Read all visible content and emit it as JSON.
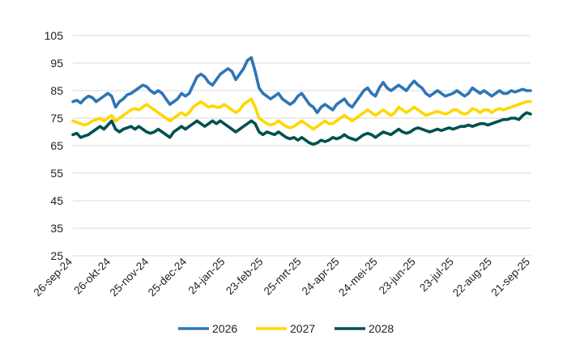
{
  "chart_data": {
    "type": "line",
    "title": "",
    "xlabel": "",
    "ylabel": "",
    "ylim": [
      25,
      105
    ],
    "yticks": [
      25,
      35,
      45,
      55,
      65,
      75,
      85,
      95,
      105
    ],
    "grid": "horizontal",
    "legend_position": "bottom",
    "x_tick_labels": [
      "26-sep-24",
      "26-okt-24",
      "25-nov-24",
      "25-dec-24",
      "24-jan-25",
      "23-feb-25",
      "25-mrt-25",
      "24-apr-25",
      "24-mei-25",
      "23-jun-25",
      "23-jul-25",
      "22-aug-25",
      "21-sep-25"
    ],
    "series": [
      {
        "name": "2026",
        "color": "#2e75b6",
        "values": [
          81,
          81.5,
          80.5,
          82,
          83,
          82.5,
          81,
          82,
          83,
          84,
          83,
          79,
          81,
          82,
          83.5,
          84,
          85,
          86,
          87,
          86.5,
          85,
          84,
          85,
          84,
          82,
          80,
          81,
          82,
          84,
          83,
          84,
          87,
          90,
          91,
          90,
          88,
          87,
          89,
          91,
          92,
          93,
          92,
          89,
          91,
          93,
          96,
          97,
          92,
          86,
          84,
          83,
          82,
          83,
          84,
          82,
          81,
          80,
          81,
          83,
          84,
          82,
          80,
          79,
          77,
          79,
          80,
          79,
          78,
          80,
          81,
          82,
          80,
          79,
          81,
          83,
          85,
          86,
          84,
          83,
          86,
          88,
          86,
          85,
          86,
          87,
          86,
          85,
          87,
          88.5,
          87,
          86,
          84,
          83,
          84,
          85,
          84,
          83,
          83.5,
          84,
          85,
          84,
          83,
          84,
          86,
          85,
          84,
          85,
          84,
          83,
          84,
          85,
          84,
          84,
          85,
          84.5,
          85,
          85.5,
          85,
          85
        ]
      },
      {
        "name": "2027",
        "color": "#ffd700",
        "values": [
          74,
          73.5,
          73,
          72.5,
          73,
          74,
          74.5,
          75,
          74,
          75,
          76,
          74,
          75,
          76,
          77,
          78,
          78.5,
          78,
          79,
          80,
          79,
          78,
          77,
          76,
          75,
          74,
          75,
          76,
          77,
          76,
          77,
          79,
          80,
          81,
          80,
          79,
          79.5,
          79,
          79,
          80,
          79,
          78,
          77,
          78,
          80,
          81,
          82,
          79,
          75,
          74,
          73,
          72.5,
          73,
          74,
          73,
          72,
          71.5,
          72,
          73,
          74,
          73,
          72,
          71,
          72,
          73,
          74,
          73,
          73,
          74,
          75,
          76,
          75,
          74,
          75,
          76,
          77,
          78,
          77,
          76,
          77,
          78,
          77,
          76,
          77,
          79,
          78,
          77,
          78,
          79,
          78,
          77,
          76,
          76.5,
          77,
          77.5,
          77,
          76.5,
          77,
          78,
          78,
          77,
          76.5,
          77,
          78.5,
          78,
          77,
          78,
          78,
          77,
          78,
          78.5,
          78,
          78.5,
          79,
          79.5,
          80,
          80.5,
          81,
          81
        ]
      },
      {
        "name": "2028",
        "color": "#005050",
        "values": [
          69,
          69.5,
          68,
          68.5,
          69,
          70,
          71,
          72,
          71,
          72.5,
          74,
          71,
          70,
          71,
          71.5,
          72,
          71,
          72,
          71,
          70,
          69.5,
          70,
          71,
          70,
          69,
          68,
          70,
          71,
          72,
          71,
          72,
          73,
          74,
          73,
          72,
          73,
          74,
          73,
          74,
          73,
          72,
          71,
          70,
          71,
          72,
          73,
          74,
          73,
          70,
          69,
          70,
          69.5,
          69,
          70,
          69,
          68,
          67.5,
          68,
          67,
          68,
          67,
          66,
          65.5,
          66,
          67,
          66.5,
          67,
          68,
          67.5,
          68,
          69,
          68,
          67.5,
          67,
          68,
          69,
          69.5,
          69,
          68,
          69,
          70,
          69.5,
          69,
          70,
          71,
          70,
          69.5,
          70,
          71,
          71.5,
          71,
          70.5,
          70,
          70.5,
          71,
          70.5,
          71,
          71.5,
          71,
          71.5,
          72,
          72,
          72.5,
          72,
          72.5,
          73,
          73,
          72.5,
          73,
          73.5,
          74,
          74.5,
          74.5,
          75,
          75,
          74.5,
          76,
          77,
          76.5
        ]
      }
    ]
  }
}
